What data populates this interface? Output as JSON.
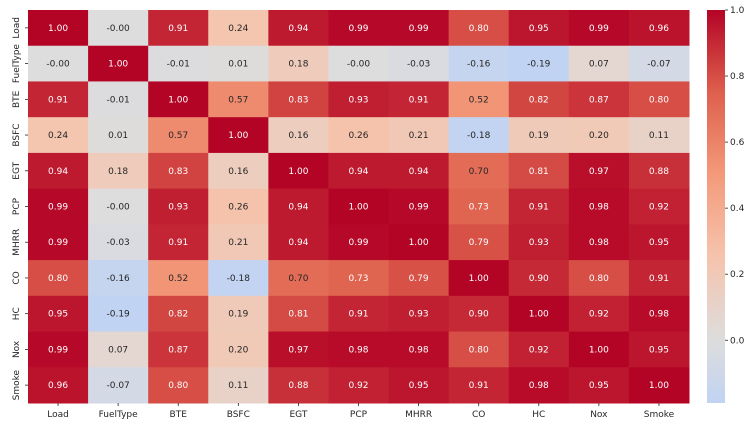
{
  "chart_data": {
    "type": "heatmap",
    "title": "",
    "xlabel": "",
    "ylabel": "",
    "variables": [
      "Load",
      "FuelType",
      "BTE",
      "BSFC",
      "EGT",
      "PCP",
      "MHRR",
      "CO",
      "HC",
      "Nox",
      "Smoke"
    ],
    "matrix": [
      [
        1.0,
        -0.0,
        0.91,
        0.24,
        0.94,
        0.99,
        0.99,
        0.8,
        0.95,
        0.99,
        0.96
      ],
      [
        -0.0,
        1.0,
        -0.01,
        0.01,
        0.18,
        -0.0,
        -0.03,
        -0.16,
        -0.19,
        0.07,
        -0.07
      ],
      [
        0.91,
        -0.01,
        1.0,
        0.57,
        0.83,
        0.93,
        0.91,
        0.52,
        0.82,
        0.87,
        0.8
      ],
      [
        0.24,
        0.01,
        0.57,
        1.0,
        0.16,
        0.26,
        0.21,
        -0.18,
        0.19,
        0.2,
        0.11
      ],
      [
        0.94,
        0.18,
        0.83,
        0.16,
        1.0,
        0.94,
        0.94,
        0.7,
        0.81,
        0.97,
        0.88
      ],
      [
        0.99,
        -0.0,
        0.93,
        0.26,
        0.94,
        1.0,
        0.99,
        0.73,
        0.91,
        0.98,
        0.92
      ],
      [
        0.99,
        -0.03,
        0.91,
        0.21,
        0.94,
        0.99,
        1.0,
        0.79,
        0.93,
        0.98,
        0.95
      ],
      [
        0.8,
        -0.16,
        0.52,
        -0.18,
        0.7,
        0.73,
        0.79,
        1.0,
        0.9,
        0.8,
        0.91
      ],
      [
        0.95,
        -0.19,
        0.82,
        0.19,
        0.81,
        0.91,
        0.93,
        0.9,
        1.0,
        0.92,
        0.98
      ],
      [
        0.99,
        0.07,
        0.87,
        0.2,
        0.97,
        0.98,
        0.98,
        0.8,
        0.92,
        1.0,
        0.95
      ],
      [
        0.96,
        -0.07,
        0.8,
        0.11,
        0.88,
        0.92,
        0.95,
        0.91,
        0.98,
        0.95,
        1.0
      ]
    ],
    "colormap": "coolwarm",
    "vmin": -0.19,
    "vmax": 1.0,
    "colorbar_ticks": [
      1.0,
      0.8,
      0.6,
      0.4,
      0.2,
      0.0
    ],
    "colorbar_tick_labels": [
      "1.0",
      "0.8",
      "0.6",
      "0.4",
      "0.2",
      "0.0"
    ],
    "annotation_format": "0.00"
  }
}
